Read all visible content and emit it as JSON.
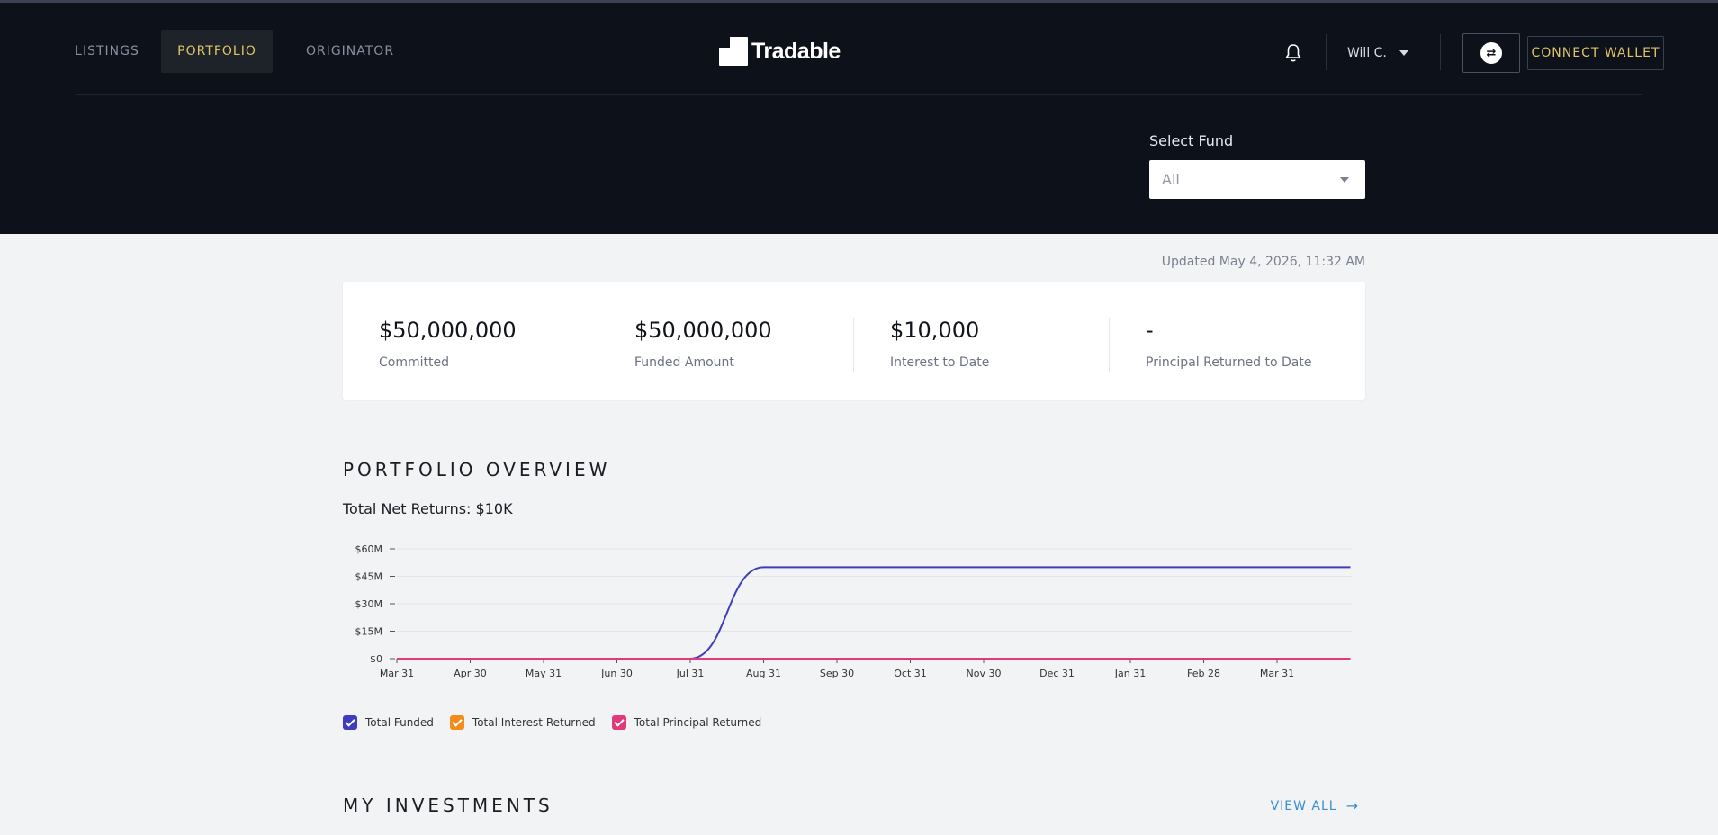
{
  "nav": {
    "tabs": [
      {
        "label": "LISTINGS"
      },
      {
        "label": "PORTFOLIO",
        "active": true
      },
      {
        "label": "ORIGINATOR"
      }
    ],
    "logo_text": "Tradable",
    "user_name": "Will C.",
    "connect_label": "CONNECT WALLET"
  },
  "fund": {
    "label": "Select Fund",
    "selected": "All"
  },
  "updated": "Updated May 4, 2026, 11:32 AM",
  "stats": [
    {
      "value": "$50,000,000",
      "label": "Committed"
    },
    {
      "value": "$50,000,000",
      "label": "Funded Amount"
    },
    {
      "value": "$10,000",
      "label": "Interest to Date"
    },
    {
      "value": "-",
      "label": "Principal Returned to Date"
    }
  ],
  "overview": {
    "title": "PORTFOLIO OVERVIEW",
    "net_returns": "Total Net Returns: $10K"
  },
  "chart_data": {
    "type": "line",
    "categories": [
      "Mar 31",
      "Apr 30",
      "May 31",
      "Jun 30",
      "Jul 31",
      "Aug 31",
      "Sep 30",
      "Oct 31",
      "Nov 30",
      "Dec 31",
      "Jan 31",
      "Feb 28",
      "Mar 31"
    ],
    "y_ticks": [
      "$0",
      "$15M",
      "$30M",
      "$45M",
      "$60M"
    ],
    "ylim": [
      0,
      60
    ],
    "y_unit": "millions USD",
    "grid": true,
    "legend_position": "bottom-left",
    "series": [
      {
        "name": "Total Funded",
        "color": "#3f3dbd",
        "x": [
          0,
          4,
          5,
          13
        ],
        "values": [
          0,
          0,
          50,
          50
        ]
      },
      {
        "name": "Total Interest Returned",
        "color": "#f28c1d",
        "x": [
          0,
          13
        ],
        "values": [
          0,
          0
        ]
      },
      {
        "name": "Total Principal Returned",
        "color": "#e03a7a",
        "x": [
          0,
          13
        ],
        "values": [
          0,
          0
        ]
      }
    ]
  },
  "investments": {
    "title": "MY INVESTMENTS",
    "view_all": "VIEW ALL"
  },
  "colors": {
    "header_bg": "#0d1119",
    "accent_gold": "#e0c46a",
    "link_blue": "#3a8fcf"
  }
}
